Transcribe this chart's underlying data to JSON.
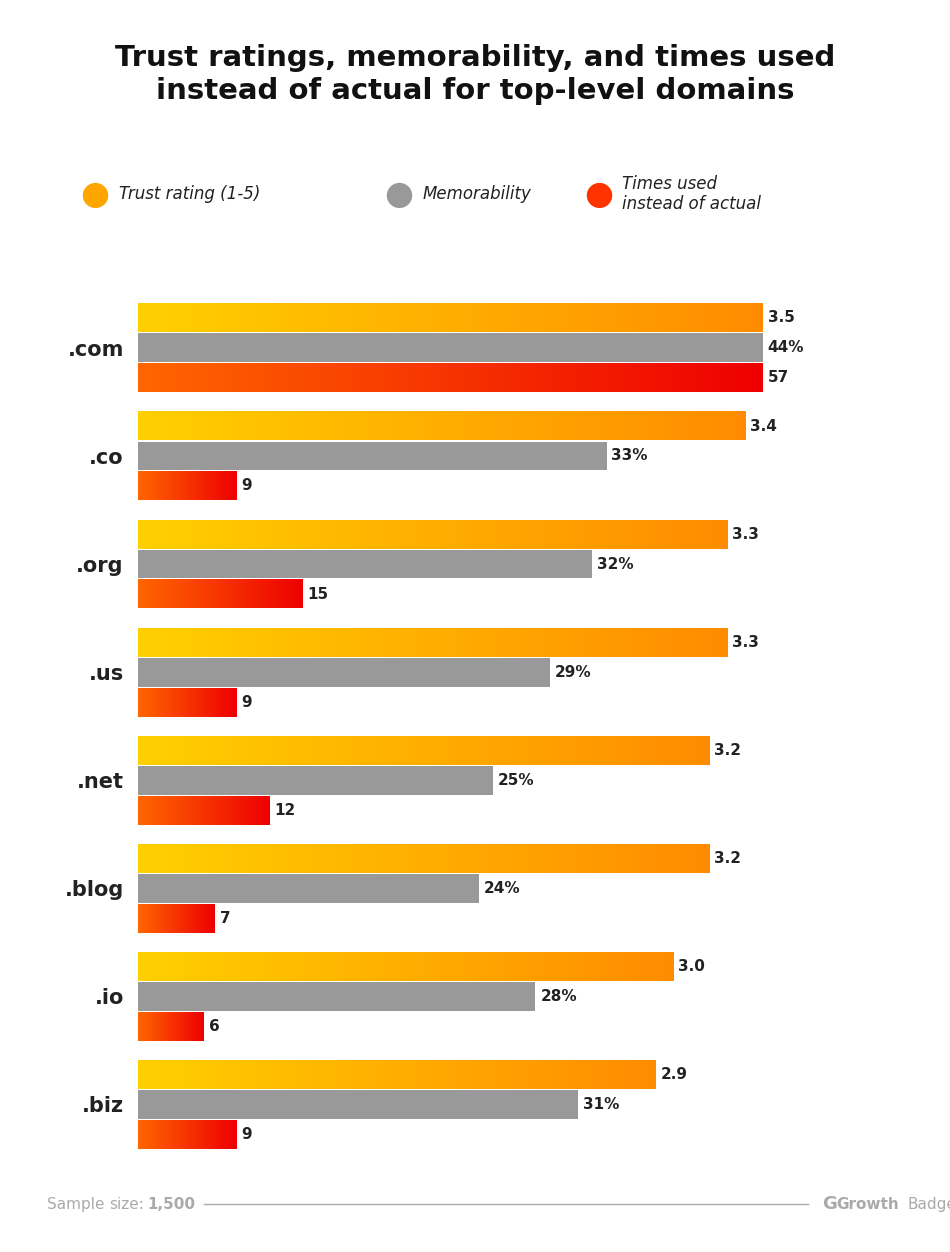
{
  "title": "Trust ratings, memorability, and times used\ninstead of actual for top-level domains",
  "categories": [
    ".com",
    ".co",
    ".org",
    ".us",
    ".net",
    ".blog",
    ".io",
    ".biz"
  ],
  "trust": [
    3.5,
    3.4,
    3.3,
    3.3,
    3.2,
    3.2,
    3.0,
    2.9
  ],
  "memorability": [
    44,
    33,
    32,
    29,
    25,
    24,
    28,
    31
  ],
  "times_used": [
    57,
    9,
    15,
    9,
    12,
    7,
    6,
    9
  ],
  "trust_max": 3.5,
  "mem_max": 44,
  "times_max": 57,
  "trust_label": "Trust rating (1-5)",
  "mem_label": "Memorability",
  "times_label": "Times used\ninstead of actual",
  "trust_color_left": "#FFD000",
  "trust_color_right": "#FF8C00",
  "mem_color": "#999999",
  "times_color_left": "#FF6600",
  "times_color_right": "#EE0000",
  "label_color": "#222222",
  "bg_color": "#FFFFFF",
  "footer_color": "#AAAAAA",
  "bar_height": 0.27,
  "bar_gap": 0.01
}
